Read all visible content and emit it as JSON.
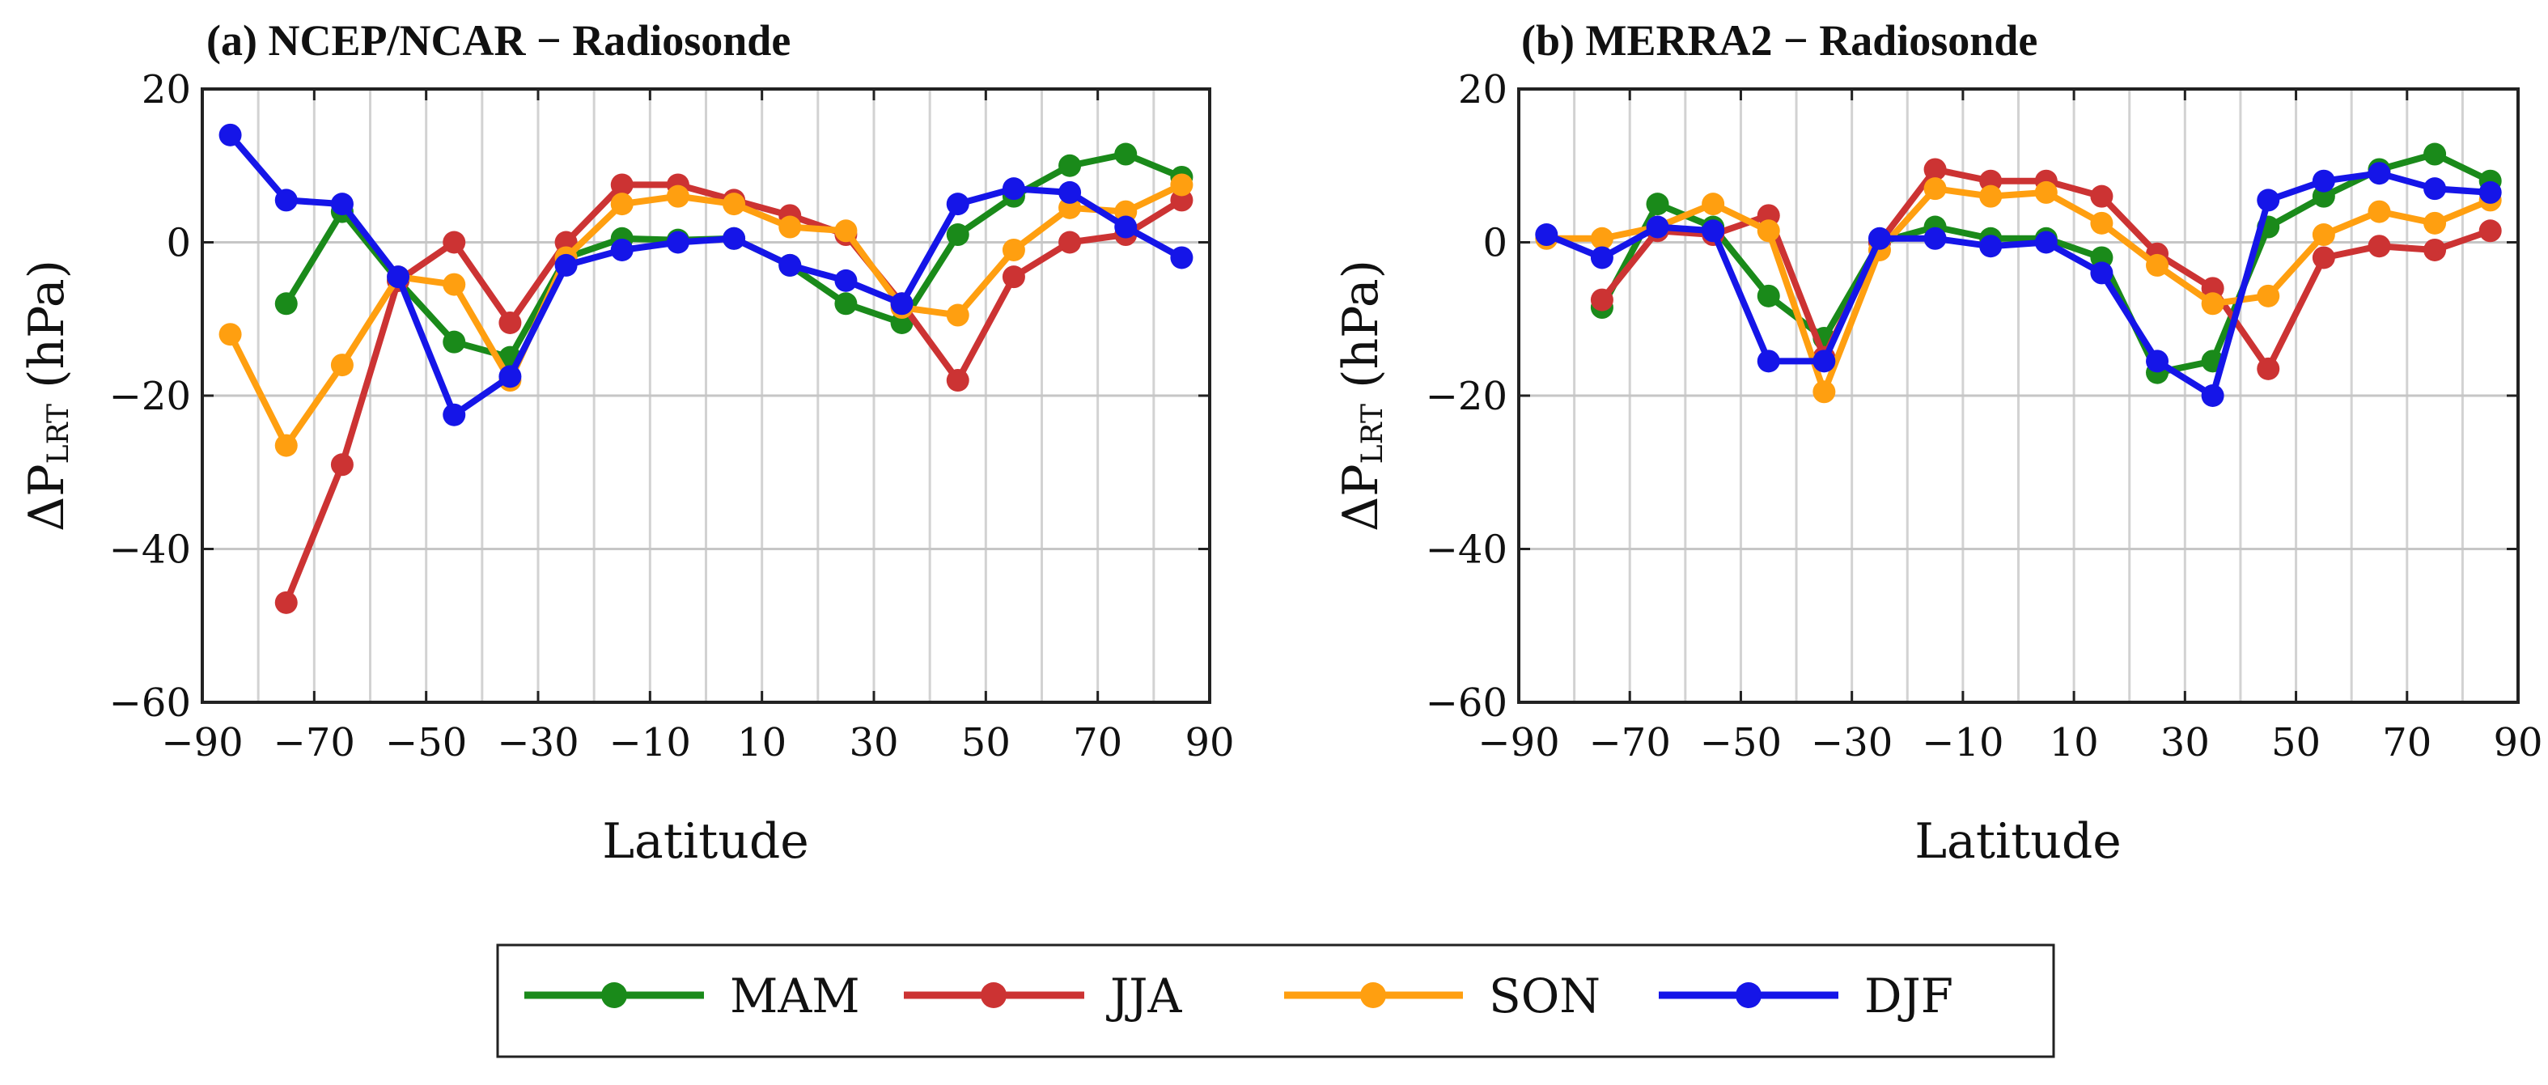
{
  "legend": [
    "MAM",
    "JJA",
    "SON",
    "DJF"
  ],
  "colors": {
    "MAM": "#1a8a1a",
    "JJA": "#cc3333",
    "SON": "#ff9f10",
    "DJF": "#1515e8"
  },
  "chart_data": [
    {
      "type": "line",
      "title": "(a) NCEP/NCAR − Radiosonde",
      "xlabel": "Latitude",
      "ylabel": "ΔP",
      "ylabel_sub": "LRT",
      "ylabel_unit": " (hPa)",
      "xlim": [
        -90,
        90
      ],
      "ylim": [
        -60,
        20
      ],
      "xticks": [
        -90,
        -70,
        -50,
        -30,
        -10,
        10,
        30,
        50,
        70,
        90
      ],
      "xtick_labels": [
        "−90",
        "−70",
        "−50",
        "−30",
        "−10",
        "10",
        "30",
        "50",
        "70",
        "90"
      ],
      "yticks": [
        20,
        0,
        -20,
        -40,
        -60
      ],
      "ytick_labels": [
        "20",
        "0",
        "−20",
        "−40",
        "−60"
      ],
      "grid": true,
      "series": [
        {
          "name": "MAM",
          "x": [
            -75,
            -65,
            -55,
            -45,
            -35,
            -25,
            -15,
            -5,
            5,
            15,
            25,
            35,
            45,
            55,
            65,
            75,
            85
          ],
          "values": [
            -8,
            4,
            -5,
            -13,
            -15,
            -2,
            0.5,
            0.3,
            0.5,
            -3,
            -8,
            -10.5,
            1,
            6,
            10,
            11.5,
            8.5
          ]
        },
        {
          "name": "JJA",
          "x": [
            -75,
            -65,
            -55,
            -45,
            -35,
            -25,
            -15,
            -5,
            5,
            15,
            25,
            35,
            45,
            55,
            65,
            75,
            85
          ],
          "values": [
            -47,
            -29,
            -5,
            0,
            -10.5,
            0,
            7.5,
            7.5,
            5.5,
            3.5,
            1,
            -8,
            -18,
            -4.5,
            0,
            1,
            5.5
          ]
        },
        {
          "name": "SON",
          "x": [
            -85,
            -75,
            -65,
            -55,
            -45,
            -35,
            -25,
            -15,
            -5,
            5,
            15,
            25,
            35,
            45,
            55,
            65,
            75,
            85
          ],
          "values": [
            -12,
            -26.5,
            -16,
            -4.5,
            -5.5,
            -18,
            -2,
            5,
            6,
            5,
            2,
            1.5,
            -8.5,
            -9.5,
            -1,
            4.5,
            4,
            7.5
          ]
        },
        {
          "name": "DJF",
          "x": [
            -85,
            -75,
            -65,
            -55,
            -45,
            -35,
            -25,
            -15,
            -5,
            5,
            15,
            25,
            35,
            45,
            55,
            65,
            75,
            85
          ],
          "values": [
            14,
            5.5,
            5,
            -4.5,
            -22.5,
            -17.5,
            -3,
            -1,
            0,
            0.5,
            -3,
            -5,
            -8,
            5,
            7,
            6.5,
            2,
            -2
          ]
        }
      ]
    },
    {
      "type": "line",
      "title": "(b) MERRA2 − Radiosonde",
      "xlabel": "Latitude",
      "ylabel": "ΔP",
      "ylabel_sub": "LRT",
      "ylabel_unit": " (hPa)",
      "xlim": [
        -90,
        90
      ],
      "ylim": [
        -60,
        20
      ],
      "xticks": [
        -90,
        -70,
        -50,
        -30,
        -10,
        10,
        30,
        50,
        70,
        90
      ],
      "xtick_labels": [
        "−90",
        "−70",
        "−50",
        "−30",
        "−10",
        "10",
        "30",
        "50",
        "70",
        "90"
      ],
      "yticks": [
        20,
        0,
        -20,
        -40,
        -60
      ],
      "ytick_labels": [
        "20",
        "0",
        "−20",
        "−40",
        "−60"
      ],
      "grid": true,
      "series": [
        {
          "name": "MAM",
          "x": [
            -75,
            -65,
            -55,
            -45,
            -35,
            -25,
            -15,
            -5,
            5,
            15,
            25,
            35,
            45,
            55,
            65,
            75,
            85
          ],
          "values": [
            -8.5,
            5,
            2,
            -7,
            -12.5,
            0,
            2,
            0.5,
            0.5,
            -2,
            -17,
            -15.5,
            2,
            6,
            9.5,
            11.5,
            8
          ]
        },
        {
          "name": "JJA",
          "x": [
            -75,
            -65,
            -55,
            -45,
            -35,
            -25,
            -15,
            -5,
            5,
            15,
            25,
            35,
            45,
            55,
            65,
            75,
            85
          ],
          "values": [
            -7.5,
            1.5,
            1,
            3.5,
            -15,
            0,
            9.5,
            8,
            8,
            6,
            -1.5,
            -6,
            -16.5,
            -2,
            -0.5,
            -1,
            1.5
          ]
        },
        {
          "name": "SON",
          "x": [
            -85,
            -75,
            -65,
            -55,
            -45,
            -35,
            -25,
            -15,
            -5,
            5,
            15,
            25,
            35,
            45,
            55,
            65,
            75,
            85
          ],
          "values": [
            0.5,
            0.5,
            2,
            5,
            1.5,
            -19.5,
            -1,
            7,
            6,
            6.5,
            2.5,
            -3,
            -8,
            -7,
            1,
            4,
            2.5,
            5.5
          ]
        },
        {
          "name": "DJF",
          "x": [
            -85,
            -75,
            -65,
            -55,
            -45,
            -35,
            -25,
            -15,
            -5,
            5,
            15,
            25,
            35,
            45,
            55,
            65,
            75,
            85
          ],
          "values": [
            1,
            -2,
            2,
            1.5,
            -15.5,
            -15.5,
            0.5,
            0.5,
            -0.5,
            0,
            -4,
            -15.5,
            -20,
            5.5,
            8,
            9,
            7,
            6.5
          ]
        }
      ]
    }
  ]
}
